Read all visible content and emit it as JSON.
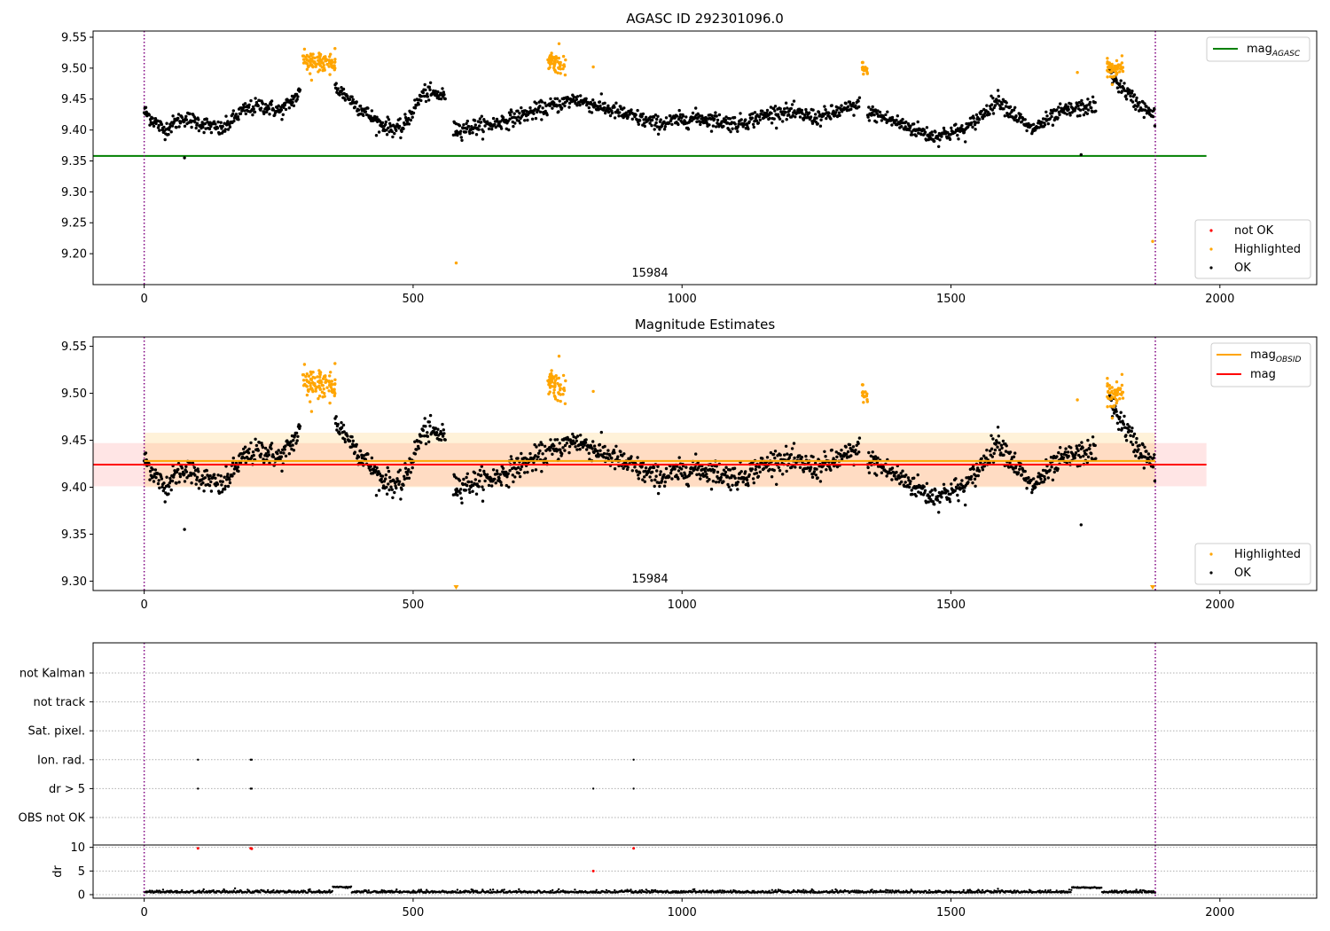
{
  "chart_data": [
    {
      "type": "scatter",
      "title": "AGASC ID 292301096.0",
      "xlim": [
        -95,
        2180
      ],
      "ylim": [
        9.15,
        9.56
      ],
      "xticks": [
        0,
        500,
        1000,
        1500,
        2000
      ],
      "xtick_labels": [
        "0",
        "500",
        "1000",
        "1500",
        "2000"
      ],
      "yticks": [
        9.2,
        9.25,
        9.3,
        9.35,
        9.4,
        9.45,
        9.5,
        9.55
      ],
      "ytick_labels": [
        "9.20",
        "9.25",
        "9.30",
        "9.35",
        "9.40",
        "9.45",
        "9.50",
        "9.55"
      ],
      "obsid_label": "15984",
      "obsid_label_x": 940,
      "obsid_boundaries_x": [
        0,
        1880
      ],
      "mag_agasc": 9.358,
      "mag_agasc_xrange": [
        -95,
        1975
      ],
      "legend_top": [
        {
          "label": "mag",
          "sub": "AGASC",
          "color": "#008000"
        }
      ],
      "legend_bottom": [
        {
          "label": "not OK",
          "color": "#ff0000"
        },
        {
          "label": "Highlighted",
          "color": "#ffa500"
        },
        {
          "label": "OK",
          "color": "#000000"
        }
      ],
      "ok_series": {
        "name": "OK",
        "color": "#000000",
        "x_range": [
          0,
          1880
        ],
        "segments": [
          {
            "x": [
              0,
              290
            ],
            "levels": [
              9.43,
              9.4,
              9.42,
              9.41,
              9.4,
              9.43,
              9.44,
              9.43,
              9.46
            ]
          },
          {
            "x": [
              355,
              560
            ],
            "levels": [
              9.47,
              9.44,
              9.41,
              9.4,
              9.46,
              9.455
            ]
          },
          {
            "x": [
              575,
              1330
            ],
            "levels": [
              9.4,
              9.41,
              9.43,
              9.45,
              9.43,
              9.41,
              9.42,
              9.41,
              9.43,
              9.42,
              9.44
            ]
          },
          {
            "x": [
              1345,
              1770
            ],
            "levels": [
              9.43,
              9.41,
              9.39,
              9.4,
              9.45,
              9.4,
              9.43,
              9.44
            ]
          },
          {
            "x": [
              1795,
              1880
            ],
            "levels": [
              9.49,
              9.45,
              9.42
            ]
          }
        ],
        "outliers": [
          [
            75,
            9.355
          ],
          [
            1742,
            9.36
          ],
          [
            580,
            9.41
          ]
        ]
      },
      "highlighted_series": {
        "name": "Highlighted",
        "color": "#ffa500",
        "clusters": [
          {
            "x": [
              295,
              355
            ],
            "center": 9.51,
            "spread": 0.013
          },
          {
            "x": [
              750,
              785
            ],
            "center": 9.51,
            "spread": 0.012
          },
          {
            "x": [
              1335,
              1345
            ],
            "center": 9.5,
            "spread": 0.008
          },
          {
            "x": [
              1790,
              1820
            ],
            "center": 9.5,
            "spread": 0.012
          }
        ],
        "singles": [
          [
            580,
            9.185
          ],
          [
            835,
            9.502
          ],
          [
            1735,
            9.493
          ],
          [
            1875,
            9.22
          ]
        ]
      }
    },
    {
      "type": "scatter",
      "title": "Magnitude Estimates",
      "xlim": [
        -95,
        2180
      ],
      "ylim": [
        9.29,
        9.56
      ],
      "xticks": [
        0,
        500,
        1000,
        1500,
        2000
      ],
      "xtick_labels": [
        "0",
        "500",
        "1000",
        "1500",
        "2000"
      ],
      "yticks": [
        9.3,
        9.35,
        9.4,
        9.45,
        9.5,
        9.55
      ],
      "ytick_labels": [
        "9.30",
        "9.35",
        "9.40",
        "9.45",
        "9.50",
        "9.55"
      ],
      "obsid_label": "15984",
      "obsid_label_x": 940,
      "obsid_boundaries_x": [
        0,
        1880
      ],
      "mag_obsid": 9.428,
      "mag_obsid_band": [
        9.4,
        9.458
      ],
      "mag": 9.424,
      "mag_band": [
        9.401,
        9.447
      ],
      "legend_top": [
        {
          "label": "mag",
          "sub": "OBSID",
          "color": "#ffa500"
        },
        {
          "label": "mag",
          "sub": "",
          "color": "#ff0000"
        }
      ],
      "legend_bottom": [
        {
          "label": "Highlighted",
          "color": "#ffa500"
        },
        {
          "label": "OK",
          "color": "#000000"
        }
      ],
      "clipped_markers_x": [
        580,
        1875
      ]
    },
    {
      "type": "scatter",
      "xlim": [
        -95,
        2180
      ],
      "xticks": [
        0,
        500,
        1000,
        1500,
        2000
      ],
      "xtick_labels": [
        "0",
        "500",
        "1000",
        "1500",
        "2000"
      ],
      "flags": [
        "not Kalman",
        "not track",
        "Sat. pixel.",
        "Ion. rad.",
        "dr > 5",
        "OBS not OK"
      ],
      "flag_points": [
        {
          "flag": "Ion. rad.",
          "x": [
            100,
            198,
            200,
            910
          ]
        },
        {
          "flag": "dr > 5",
          "x": [
            100,
            198,
            200,
            835,
            910
          ]
        }
      ],
      "dr": {
        "ylabel": "dr",
        "ylim": [
          0,
          10.5
        ],
        "yticks": [
          0,
          5,
          10
        ],
        "ytick_labels": [
          "0",
          "5",
          "10"
        ],
        "baseline": 0.4,
        "plateaus": [
          {
            "x": [
              350,
              385
            ],
            "value": 1.6
          },
          {
            "x": [
              1725,
              1780
            ],
            "value": 1.5
          }
        ],
        "red_points": [
          [
            100,
            9.8
          ],
          [
            198,
            9.8
          ],
          [
            200,
            9.7
          ],
          [
            835,
            5.0
          ],
          [
            910,
            9.8
          ]
        ]
      },
      "obsid_boundaries_x": [
        0,
        1880
      ]
    }
  ]
}
